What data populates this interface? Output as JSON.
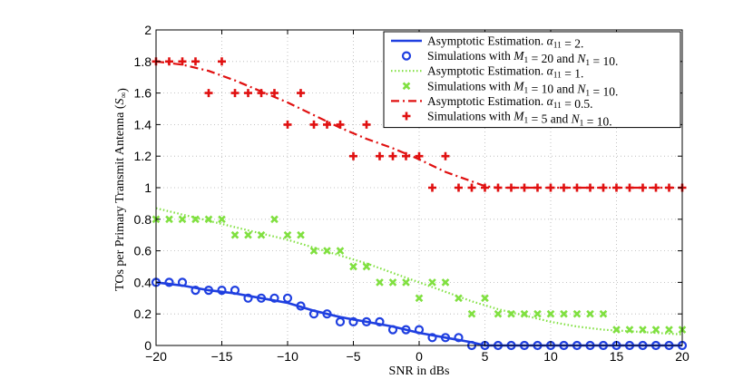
{
  "chart_data": {
    "type": "line",
    "xlabel": "SNR in dBs",
    "ylabel": "TOs per Primary Transmit Antenna (S∞)",
    "xlim": [
      -20,
      20
    ],
    "ylim": [
      0,
      2
    ],
    "xticks": [
      -20,
      -15,
      -10,
      -5,
      0,
      5,
      10,
      15,
      20
    ],
    "yticks": [
      0,
      0.2,
      0.4,
      0.6,
      0.8,
      1,
      1.2,
      1.4,
      1.6,
      1.8,
      2
    ],
    "ytick_labels": [
      "0",
      "0.2",
      "0.4",
      "0.6",
      "0.8",
      "1",
      "1.2",
      "1.4",
      "1.6",
      "1.8",
      "2"
    ],
    "grid": true,
    "legend_position": "top-right",
    "series": [
      {
        "name": "Asymptotic Estimation. α11 = 2.",
        "kind": "line",
        "style": "solid",
        "color": "#1f3fe0",
        "x": [
          -20,
          -18,
          -16,
          -14,
          -12,
          -10,
          -8,
          -6,
          -4,
          -2,
          0,
          2,
          4,
          5,
          6,
          8,
          10,
          12,
          14,
          16,
          18,
          20
        ],
        "y": [
          0.4,
          0.38,
          0.35,
          0.33,
          0.3,
          0.27,
          0.22,
          0.18,
          0.15,
          0.12,
          0.08,
          0.05,
          0.02,
          0.0,
          0.0,
          0.0,
          0.0,
          0.0,
          0.0,
          0.0,
          0.0,
          0.0
        ]
      },
      {
        "name": "Simulations with M1 = 20 and N1 = 10.",
        "kind": "scatter",
        "marker": "circle",
        "color": "#1f3fe0",
        "x": [
          -20,
          -19,
          -18,
          -17,
          -16,
          -15,
          -14,
          -13,
          -12,
          -11,
          -10,
          -9,
          -8,
          -7,
          -6,
          -5,
          -4,
          -3,
          -2,
          -1,
          0,
          1,
          2,
          3,
          4,
          5,
          6,
          7,
          8,
          9,
          10,
          11,
          12,
          13,
          14,
          15,
          16,
          17,
          18,
          19,
          20
        ],
        "y": [
          0.4,
          0.4,
          0.4,
          0.35,
          0.35,
          0.35,
          0.35,
          0.3,
          0.3,
          0.3,
          0.3,
          0.25,
          0.2,
          0.2,
          0.15,
          0.15,
          0.15,
          0.15,
          0.1,
          0.1,
          0.1,
          0.05,
          0.05,
          0.05,
          0.0,
          0.0,
          0.0,
          0.0,
          0.0,
          0.0,
          0.0,
          0.0,
          0.0,
          0.0,
          0.0,
          0.0,
          0.0,
          0.0,
          0.0,
          0.0,
          0.0
        ]
      },
      {
        "name": "Asymptotic Estimation. α11 = 1.",
        "kind": "line",
        "style": "dotted",
        "color": "#80e040",
        "x": [
          -20,
          -18,
          -16,
          -14,
          -12,
          -10,
          -8,
          -6,
          -4,
          -2,
          0,
          2,
          4,
          6,
          8,
          10,
          12,
          14,
          16,
          18,
          20
        ],
        "y": [
          0.87,
          0.83,
          0.79,
          0.75,
          0.71,
          0.67,
          0.62,
          0.57,
          0.52,
          0.46,
          0.4,
          0.34,
          0.28,
          0.23,
          0.19,
          0.15,
          0.12,
          0.1,
          0.09,
          0.08,
          0.07
        ]
      },
      {
        "name": "Simulations with M1 = 10 and N1 = 10.",
        "kind": "scatter",
        "marker": "x",
        "color": "#80e040",
        "x": [
          -20,
          -19,
          -18,
          -17,
          -16,
          -15,
          -14,
          -13,
          -12,
          -11,
          -10,
          -9,
          -8,
          -7,
          -6,
          -5,
          -4,
          -3,
          -2,
          -1,
          0,
          1,
          2,
          3,
          4,
          5,
          6,
          7,
          8,
          9,
          10,
          11,
          12,
          13,
          14,
          15,
          16,
          17,
          18,
          19,
          20
        ],
        "y": [
          0.8,
          0.8,
          0.8,
          0.8,
          0.8,
          0.8,
          0.7,
          0.7,
          0.7,
          0.8,
          0.7,
          0.7,
          0.6,
          0.6,
          0.6,
          0.5,
          0.5,
          0.4,
          0.4,
          0.4,
          0.3,
          0.4,
          0.4,
          0.3,
          0.2,
          0.3,
          0.2,
          0.2,
          0.2,
          0.2,
          0.2,
          0.2,
          0.2,
          0.2,
          0.2,
          0.1,
          0.1,
          0.1,
          0.1,
          0.1,
          0.1
        ]
      },
      {
        "name": "Asymptotic Estimation. α11 = 0.5.",
        "kind": "line",
        "style": "dashdot",
        "color": "#e01010",
        "x": [
          -20,
          -18,
          -16,
          -14,
          -12,
          -10,
          -8,
          -6,
          -4,
          -2,
          0,
          2,
          4,
          5,
          6,
          8,
          10,
          12,
          14,
          16,
          18,
          20
        ],
        "y": [
          1.8,
          1.78,
          1.74,
          1.68,
          1.61,
          1.54,
          1.46,
          1.38,
          1.31,
          1.25,
          1.18,
          1.1,
          1.04,
          1.01,
          1.0,
          1.0,
          1.0,
          1.0,
          1.0,
          1.0,
          1.0,
          1.0
        ]
      },
      {
        "name": "Simulations with M1 = 5 and N1 = 10.",
        "kind": "scatter",
        "marker": "plus",
        "color": "#e01010",
        "x": [
          -20,
          -19,
          -18,
          -17,
          -16,
          -15,
          -14,
          -13,
          -12,
          -11,
          -10,
          -9,
          -8,
          -7,
          -6,
          -5,
          -4,
          -3,
          -2,
          -1,
          0,
          1,
          2,
          3,
          4,
          5,
          6,
          7,
          8,
          9,
          10,
          11,
          12,
          13,
          14,
          15,
          16,
          17,
          18,
          19,
          20
        ],
        "y": [
          1.8,
          1.8,
          1.8,
          1.8,
          1.6,
          1.8,
          1.6,
          1.6,
          1.6,
          1.6,
          1.4,
          1.6,
          1.4,
          1.4,
          1.4,
          1.2,
          1.4,
          1.2,
          1.2,
          1.2,
          1.2,
          1.0,
          1.2,
          1.0,
          1.0,
          1.0,
          1.0,
          1.0,
          1.0,
          1.0,
          1.0,
          1.0,
          1.0,
          1.0,
          1.0,
          1.0,
          1.0,
          1.0,
          1.0,
          1.0,
          1.0
        ]
      }
    ]
  }
}
